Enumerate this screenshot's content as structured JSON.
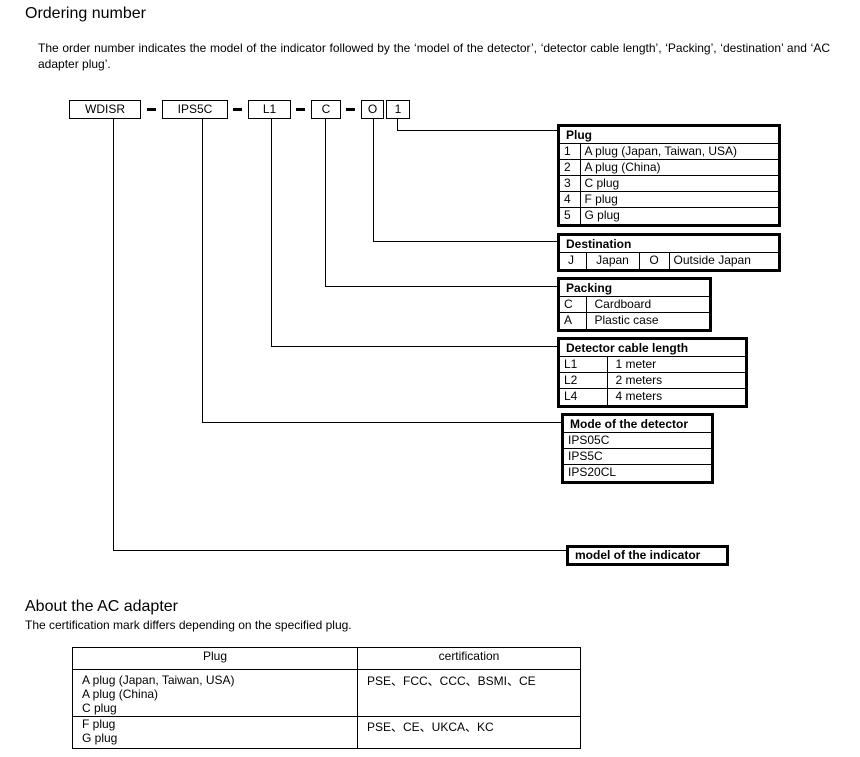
{
  "title": "Ordering number",
  "intro": "The order number indicates the model of the indicator followed by the ‘model of the detector’, ‘detector cable length’, ‘Packing’, ‘destination’ and ‘AC adapter plug’.",
  "code": [
    "WDISR",
    "IPS5C",
    "L1",
    "C",
    "O",
    "1"
  ],
  "plug": {
    "title": "Plug",
    "rows": [
      [
        "1",
        "A plug (Japan, Taiwan, USA)"
      ],
      [
        "2",
        "A plug (China)"
      ],
      [
        "3",
        "C plug"
      ],
      [
        "4",
        "F plug"
      ],
      [
        "5",
        "G plug"
      ]
    ]
  },
  "destination": {
    "title": "Destination",
    "row": [
      "J",
      "Japan",
      "O",
      "Outside Japan"
    ]
  },
  "packing": {
    "title": "Packing",
    "rows": [
      [
        "C",
        "Cardboard"
      ],
      [
        "A",
        "Plastic case"
      ]
    ]
  },
  "cable": {
    "title": "Detector cable length",
    "rows": [
      [
        "L1",
        "1 meter"
      ],
      [
        "L2",
        "2 meters"
      ],
      [
        "L4",
        "4 meters"
      ]
    ]
  },
  "detector": {
    "title": "Mode of the detector",
    "rows": [
      "IPS05C",
      "IPS5C",
      "IPS20CL"
    ]
  },
  "indicator": {
    "title": "model of the indicator"
  },
  "ac": {
    "title": "About the AC adapter",
    "subtitle": "The certification mark differs depending on the specified plug.",
    "headers": [
      "Plug",
      "certification"
    ],
    "rows": [
      {
        "plugs": [
          "A plug (Japan, Taiwan, USA)",
          "A plug (China)",
          "C plug"
        ],
        "cert": "PSE、FCC、CCC、BSMI、CE"
      },
      {
        "plugs": [
          "F plug",
          "G plug"
        ],
        "cert": "PSE、CE、UKCA、KC"
      }
    ]
  }
}
